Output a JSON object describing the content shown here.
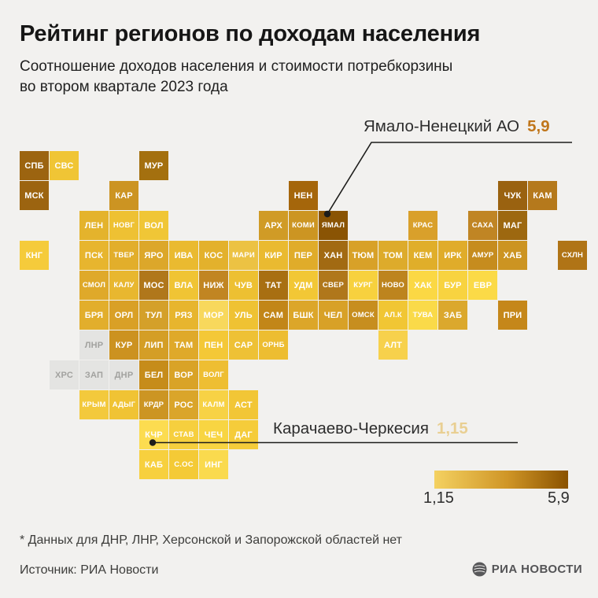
{
  "title": "Рейтинг регионов по доходам населения",
  "subtitle_line1": "Соотношение доходов населения и стоимости потребкорзины",
  "subtitle_line2": "во втором квартале 2023 года",
  "annotations": {
    "max": {
      "label": "Ямало-Ненецкий АО",
      "value": "5,9",
      "value_color": "#c0761b"
    },
    "min": {
      "label": "Карачаево-Черкесия",
      "value": "1,15",
      "value_color": "#e9cf92"
    }
  },
  "legend": {
    "min_label": "1,15",
    "max_label": "5,9",
    "gradient": [
      "#f4d161",
      "#cf9526",
      "#8a5200"
    ]
  },
  "footnote": "* Данных для ДНР, ЛНР, Херсонской и Запорожской областей нет",
  "source": "Источник: РИА Новости",
  "logo_text": "РИА НОВОСТИ",
  "chart_data": {
    "type": "heatmap",
    "subtype": "tile-cartogram",
    "title": "Рейтинг регионов по доходам населения",
    "value_range": [
      1.15,
      5.9
    ],
    "highlight_max": {
      "region": "Ямало-Ненецкий АО",
      "tile": "ЯМАЛ",
      "value": 5.9
    },
    "highlight_min": {
      "region": "Карачаево-Черкесия",
      "tile": "КЧР",
      "value": 1.15
    },
    "no_data_note": "Данных для ДНР, ЛНР, Херсонской и Запорожской областей нет",
    "tiles": [
      {
        "label": "СПБ",
        "row": 1,
        "col": 1,
        "color": "#9c6410"
      },
      {
        "label": "СВС",
        "row": 1,
        "col": 2,
        "color": "#f0c535"
      },
      {
        "label": "МУР",
        "row": 1,
        "col": 5,
        "color": "#a4700f"
      },
      {
        "label": "МСК",
        "row": 2,
        "col": 1,
        "color": "#9c6410"
      },
      {
        "label": "КАР",
        "row": 2,
        "col": 4,
        "color": "#cc9422"
      },
      {
        "label": "НЕН",
        "row": 2,
        "col": 10,
        "color": "#a5660b"
      },
      {
        "label": "ЧУК",
        "row": 2,
        "col": 17,
        "color": "#9a6210"
      },
      {
        "label": "КАМ",
        "row": 2,
        "col": 18,
        "color": "#b5791c"
      },
      {
        "label": "ЛЕН",
        "row": 3,
        "col": 3,
        "color": "#e4b32c"
      },
      {
        "label": "НОВГ",
        "row": 3,
        "col": 4,
        "color": "#eec133"
      },
      {
        "label": "ВОЛ",
        "row": 3,
        "col": 5,
        "color": "#f0c636"
      },
      {
        "label": "АРХ",
        "row": 3,
        "col": 9,
        "color": "#d09b26"
      },
      {
        "label": "КОМИ",
        "row": 3,
        "col": 10,
        "color": "#cc9522"
      },
      {
        "label": "ЯМАЛ",
        "row": 3,
        "col": 11,
        "color": "#8a5404"
      },
      {
        "label": "КРАС",
        "row": 3,
        "col": 14,
        "color": "#d9a02b"
      },
      {
        "label": "САХА",
        "row": 3,
        "col": 16,
        "color": "#c08524"
      },
      {
        "label": "МАГ",
        "row": 3,
        "col": 17,
        "color": "#9d6810"
      },
      {
        "label": "КНГ",
        "row": 4,
        "col": 1,
        "color": "#f5cb3b"
      },
      {
        "label": "ПСК",
        "row": 4,
        "col": 3,
        "color": "#e7b52e"
      },
      {
        "label": "ТВЕР",
        "row": 4,
        "col": 4,
        "color": "#e2ae2b"
      },
      {
        "label": "ЯРО",
        "row": 4,
        "col": 5,
        "color": "#dca72a"
      },
      {
        "label": "ИВА",
        "row": 4,
        "col": 6,
        "color": "#eaba30"
      },
      {
        "label": "КОС",
        "row": 4,
        "col": 7,
        "color": "#e3b12c"
      },
      {
        "label": "МАРИ",
        "row": 4,
        "col": 8,
        "color": "#ecc243"
      },
      {
        "label": "КИР",
        "row": 4,
        "col": 9,
        "color": "#eaba30"
      },
      {
        "label": "ПЕР",
        "row": 4,
        "col": 10,
        "color": "#e0ac2a"
      },
      {
        "label": "ХАН",
        "row": 4,
        "col": 11,
        "color": "#a26a12"
      },
      {
        "label": "ТЮМ",
        "row": 4,
        "col": 12,
        "color": "#d8a128"
      },
      {
        "label": "ТОМ",
        "row": 4,
        "col": 13,
        "color": "#ddab2b"
      },
      {
        "label": "КЕМ",
        "row": 4,
        "col": 14,
        "color": "#e0ae2a"
      },
      {
        "label": "ИРК",
        "row": 4,
        "col": 15,
        "color": "#e0ac2a"
      },
      {
        "label": "АМУР",
        "row": 4,
        "col": 16,
        "color": "#c68c1e"
      },
      {
        "label": "ХАБ",
        "row": 4,
        "col": 17,
        "color": "#cc9422"
      },
      {
        "label": "СХЛН",
        "row": 4,
        "col": 19,
        "color": "#b07416"
      },
      {
        "label": "СМОЛ",
        "row": 5,
        "col": 3,
        "color": "#dfa92a"
      },
      {
        "label": "КАЛУ",
        "row": 5,
        "col": 4,
        "color": "#e8b72f"
      },
      {
        "label": "МОС",
        "row": 5,
        "col": 5,
        "color": "#b0771b"
      },
      {
        "label": "ВЛА",
        "row": 5,
        "col": 6,
        "color": "#f0c434"
      },
      {
        "label": "НИЖ",
        "row": 5,
        "col": 7,
        "color": "#c18522"
      },
      {
        "label": "ЧУВ",
        "row": 5,
        "col": 8,
        "color": "#edc032"
      },
      {
        "label": "ТАТ",
        "row": 5,
        "col": 9,
        "color": "#a86f12"
      },
      {
        "label": "УДМ",
        "row": 5,
        "col": 10,
        "color": "#f2c735"
      },
      {
        "label": "СВЕР",
        "row": 5,
        "col": 11,
        "color": "#b0771b"
      },
      {
        "label": "КУРГ",
        "row": 5,
        "col": 12,
        "color": "#f7d13e"
      },
      {
        "label": "НОВО",
        "row": 5,
        "col": 13,
        "color": "#bd841e"
      },
      {
        "label": "ХАК",
        "row": 5,
        "col": 14,
        "color": "#fbd844"
      },
      {
        "label": "БУР",
        "row": 5,
        "col": 15,
        "color": "#f8d340"
      },
      {
        "label": "ЕВР",
        "row": 5,
        "col": 16,
        "color": "#fbda47"
      },
      {
        "label": "БРЯ",
        "row": 6,
        "col": 3,
        "color": "#e2ae2c"
      },
      {
        "label": "ОРЛ",
        "row": 6,
        "col": 4,
        "color": "#d9a026"
      },
      {
        "label": "ТУЛ",
        "row": 6,
        "col": 5,
        "color": "#d4a02a"
      },
      {
        "label": "РЯЗ",
        "row": 6,
        "col": 6,
        "color": "#e7b52e"
      },
      {
        "label": "МОР",
        "row": 6,
        "col": 7,
        "color": "#f8d85c"
      },
      {
        "label": "УЛЬ",
        "row": 6,
        "col": 8,
        "color": "#efc233"
      },
      {
        "label": "САМ",
        "row": 6,
        "col": 9,
        "color": "#c28618"
      },
      {
        "label": "БШК",
        "row": 6,
        "col": 10,
        "color": "#dca629"
      },
      {
        "label": "ЧЕЛ",
        "row": 6,
        "col": 11,
        "color": "#d8a127"
      },
      {
        "label": "ОМСК",
        "row": 6,
        "col": 12,
        "color": "#c78e1f"
      },
      {
        "label": "АЛ.К",
        "row": 6,
        "col": 13,
        "color": "#f1c634"
      },
      {
        "label": "ТУВА",
        "row": 6,
        "col": 14,
        "color": "#fada49"
      },
      {
        "label": "ЗАБ",
        "row": 6,
        "col": 15,
        "color": "#dba82d"
      },
      {
        "label": "ПРИ",
        "row": 6,
        "col": 17,
        "color": "#c5871a"
      },
      {
        "label": "ЛНР",
        "row": 7,
        "col": 3,
        "color": "#e4e4e2",
        "no_data": true
      },
      {
        "label": "КУР",
        "row": 7,
        "col": 4,
        "color": "#cc9220"
      },
      {
        "label": "ЛИП",
        "row": 7,
        "col": 5,
        "color": "#d49e26"
      },
      {
        "label": "ТАМ",
        "row": 7,
        "col": 6,
        "color": "#dfa92a"
      },
      {
        "label": "ПЕН",
        "row": 7,
        "col": 7,
        "color": "#f4c837"
      },
      {
        "label": "САР",
        "row": 7,
        "col": 8,
        "color": "#eec135"
      },
      {
        "label": "ОРНБ",
        "row": 7,
        "col": 9,
        "color": "#edbd31"
      },
      {
        "label": "АЛТ",
        "row": 7,
        "col": 13,
        "color": "#f7d14c"
      },
      {
        "label": "ХРС",
        "row": 8,
        "col": 2,
        "color": "#e4e4e2",
        "no_data": true
      },
      {
        "label": "ЗАП",
        "row": 8,
        "col": 3,
        "color": "#e4e4e2",
        "no_data": true
      },
      {
        "label": "ДНР",
        "row": 8,
        "col": 4,
        "color": "#e4e4e2",
        "no_data": true
      },
      {
        "label": "БЕЛ",
        "row": 8,
        "col": 5,
        "color": "#c68c1a"
      },
      {
        "label": "ВОР",
        "row": 8,
        "col": 6,
        "color": "#d9a327"
      },
      {
        "label": "ВОЛГ",
        "row": 8,
        "col": 7,
        "color": "#eebe32"
      },
      {
        "label": "КРЫМ",
        "row": 9,
        "col": 3,
        "color": "#f3c93c"
      },
      {
        "label": "АДЫГ",
        "row": 9,
        "col": 4,
        "color": "#f0c334"
      },
      {
        "label": "КРДР",
        "row": 9,
        "col": 5,
        "color": "#cc9523"
      },
      {
        "label": "РОС",
        "row": 9,
        "col": 6,
        "color": "#daa52a"
      },
      {
        "label": "КАЛМ",
        "row": 9,
        "col": 7,
        "color": "#f7d245"
      },
      {
        "label": "АСТ",
        "row": 9,
        "col": 8,
        "color": "#f2c636"
      },
      {
        "label": "КЧР",
        "row": 10,
        "col": 5,
        "color": "#fcdc50"
      },
      {
        "label": "СТАВ",
        "row": 10,
        "col": 6,
        "color": "#f6cf3e"
      },
      {
        "label": "ЧЕЧ",
        "row": 10,
        "col": 7,
        "color": "#f8d542"
      },
      {
        "label": "ДАГ",
        "row": 10,
        "col": 8,
        "color": "#f5cc3a"
      },
      {
        "label": "КАБ",
        "row": 11,
        "col": 5,
        "color": "#f7d03e"
      },
      {
        "label": "С.ОС",
        "row": 11,
        "col": 6,
        "color": "#f4ca36"
      },
      {
        "label": "ИНГ",
        "row": 11,
        "col": 7,
        "color": "#fada4e"
      }
    ]
  }
}
